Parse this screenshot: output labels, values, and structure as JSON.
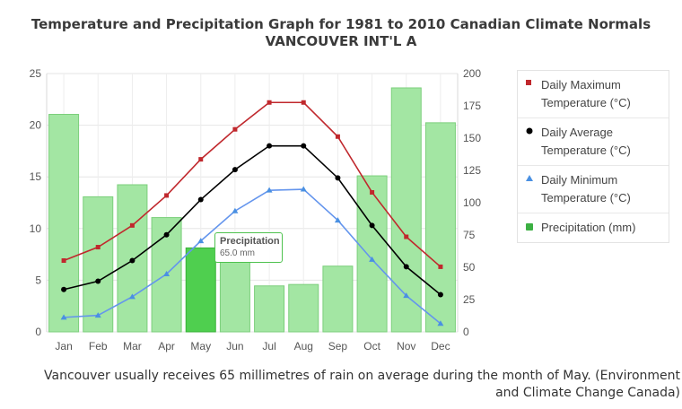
{
  "chart_data": {
    "type": "bar+line",
    "title": "Temperature and Precipitation Graph for 1981 to 2010 Canadian Climate Normals",
    "subtitle": "VANCOUVER INT'L A",
    "categories": [
      "Jan",
      "Feb",
      "Mar",
      "Apr",
      "May",
      "Jun",
      "Jul",
      "Aug",
      "Sep",
      "Oct",
      "Nov",
      "Dec"
    ],
    "left_axis": {
      "range": [
        0,
        25
      ],
      "ticks": [
        0,
        5,
        10,
        15,
        20,
        25
      ]
    },
    "right_axis": {
      "range": [
        0,
        200
      ],
      "ticks": [
        0,
        25,
        50,
        75,
        100,
        125,
        150,
        175,
        200
      ]
    },
    "grid": true,
    "legend_position": "right",
    "series": [
      {
        "name": "Daily Maximum Temperature (°C)",
        "type": "line",
        "axis": "left",
        "color": "#c0282d",
        "values": [
          6.9,
          8.2,
          10.3,
          13.2,
          16.7,
          19.6,
          22.2,
          22.2,
          18.9,
          13.5,
          9.2,
          6.3
        ]
      },
      {
        "name": "Daily Average Temperature (°C)",
        "type": "line",
        "axis": "left",
        "color": "#000000",
        "values": [
          4.1,
          4.9,
          6.9,
          9.4,
          12.8,
          15.7,
          18.0,
          18.0,
          14.9,
          10.3,
          6.3,
          3.6
        ]
      },
      {
        "name": "Daily Minimum Temperature (°C)",
        "type": "line",
        "axis": "left",
        "color": "#6495ed",
        "values": [
          1.4,
          1.6,
          3.4,
          5.6,
          8.8,
          11.7,
          13.7,
          13.8,
          10.8,
          7.0,
          3.5,
          0.8
        ]
      },
      {
        "name": "Precipitation (mm)",
        "type": "bar",
        "axis": "right",
        "color": "#90e090",
        "values": [
          168.4,
          104.6,
          113.9,
          88.5,
          65.0,
          53.8,
          35.6,
          36.7,
          50.9,
          120.8,
          188.9,
          161.9
        ]
      }
    ],
    "highlight_index": 4
  },
  "legend": [
    {
      "label": "Daily Maximum Temperature (°C)",
      "color": "#c0282d",
      "marker": "square"
    },
    {
      "label": "Daily Average Temperature (°C)",
      "color": "#000000",
      "marker": "circle"
    },
    {
      "label": "Daily Minimum Temperature (°C)",
      "color": "#4a90e2",
      "marker": "triangle"
    },
    {
      "label": "Precipitation (mm)",
      "color": "#3cb043",
      "marker": "bar"
    }
  ],
  "tooltip": {
    "title": "Precipitation",
    "value": "65.0 mm"
  },
  "caption": "Vancouver usually receives 65 millimetres of rain on average during the month of May. (Environment and Climate Change Canada)"
}
